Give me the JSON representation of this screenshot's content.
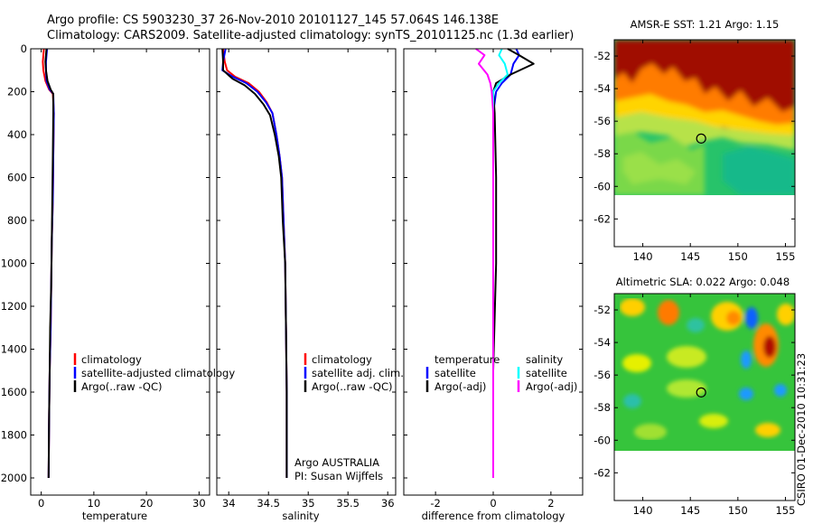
{
  "titles": {
    "line1": "Argo profile: CS 5903230_37 26-Nov-2010 20101127_145 57.064S 146.138E",
    "line2": "Climatology: CARS2009. Satellite-adjusted climatology: synTS_20101125.nc (1.3d earlier)"
  },
  "footer": "CSIRO 01-Dec-2010 10:31:23",
  "profile_panels": {
    "depth_ticks": [
      0,
      200,
      400,
      600,
      800,
      1000,
      1200,
      1400,
      1600,
      1800,
      2000
    ],
    "depth_range": [
      0,
      2080
    ]
  },
  "chart_data": [
    {
      "type": "line",
      "id": "temperature",
      "xlabel": "temperature",
      "ylabel": "",
      "xlim": [
        -2,
        32
      ],
      "ylim": [
        2080,
        0
      ],
      "xticks": [
        0,
        10,
        20,
        30
      ],
      "legend": [
        "climatology",
        "satellite-adjusted climatology",
        "Argo(..raw -QC)"
      ],
      "series": [
        {
          "name": "climatology",
          "color": "#ff0000",
          "x": [
            0.5,
            0.3,
            0.4,
            0.8,
            1.5,
            2.2,
            2.4,
            2.3,
            2.2,
            2.0,
            1.9,
            1.8,
            1.6,
            1.5,
            1.4
          ],
          "y": [
            0,
            60,
            100,
            150,
            190,
            210,
            300,
            500,
            700,
            900,
            1100,
            1300,
            1500,
            1700,
            2000
          ]
        },
        {
          "name": "satellite-adjusted climatology",
          "color": "#0000ff",
          "x": [
            1.1,
            0.9,
            0.9,
            1.0,
            1.6,
            2.3,
            2.4,
            2.3,
            2.2,
            2.0,
            1.9,
            1.8,
            1.6,
            1.5,
            1.4
          ],
          "y": [
            0,
            60,
            100,
            150,
            190,
            210,
            300,
            500,
            700,
            900,
            1100,
            1300,
            1500,
            1700,
            2000
          ]
        },
        {
          "name": "Argo(..raw -QC)",
          "color": "#000000",
          "x": [
            1.0,
            0.8,
            0.9,
            1.2,
            1.8,
            2.3,
            2.3,
            2.2,
            2.1,
            2.0,
            1.9,
            1.7,
            1.6,
            1.5,
            1.4
          ],
          "y": [
            0,
            60,
            100,
            150,
            190,
            210,
            300,
            500,
            700,
            900,
            1100,
            1300,
            1500,
            1700,
            2000
          ]
        }
      ]
    },
    {
      "type": "line",
      "id": "salinity",
      "xlabel": "salinity",
      "ylabel": "",
      "xlim": [
        33.85,
        36.1
      ],
      "ylim": [
        2080,
        0
      ],
      "xticks": [
        34,
        34.5,
        35,
        35.5,
        36
      ],
      "xtick_labels": [
        "34",
        "34.5",
        "35",
        "35.5",
        "36"
      ],
      "legend": [
        "climatology",
        "satellite adj. clim.",
        "Argo(..raw -QC)"
      ],
      "annotation": [
        "Argo AUSTRALIA",
        "PI: Susan Wijffels"
      ],
      "series": [
        {
          "name": "climatology",
          "color": "#ff0000",
          "x": [
            33.93,
            33.95,
            33.98,
            34.08,
            34.25,
            34.38,
            34.48,
            34.55,
            34.6,
            34.64,
            34.67,
            34.69,
            34.71,
            34.72,
            34.73,
            34.73
          ],
          "y": [
            0,
            60,
            100,
            130,
            160,
            200,
            250,
            300,
            400,
            500,
            600,
            800,
            1000,
            1300,
            1600,
            2000
          ]
        },
        {
          "name": "satellite adj. clim.",
          "color": "#0000ff",
          "x": [
            33.96,
            33.93,
            33.92,
            34.05,
            34.22,
            34.36,
            34.47,
            34.55,
            34.6,
            34.64,
            34.67,
            34.69,
            34.71,
            34.72,
            34.73,
            34.73
          ],
          "y": [
            0,
            60,
            100,
            130,
            160,
            200,
            250,
            300,
            400,
            500,
            600,
            800,
            1000,
            1300,
            1600,
            2000
          ]
        },
        {
          "name": "Argo(..raw -QC)",
          "color": "#000000",
          "x": [
            33.92,
            33.93,
            33.93,
            34.05,
            34.2,
            34.33,
            34.44,
            34.52,
            34.58,
            34.63,
            34.66,
            34.68,
            34.71,
            34.72,
            34.73,
            34.73
          ],
          "y": [
            0,
            60,
            100,
            140,
            170,
            210,
            260,
            310,
            400,
            500,
            600,
            800,
            1000,
            1300,
            1600,
            2000
          ]
        }
      ]
    },
    {
      "type": "line",
      "id": "difference",
      "xlabel": "difference from climatology",
      "ylabel": "",
      "xlim": [
        -3.1,
        3.1
      ],
      "ylim": [
        2080,
        0
      ],
      "xticks": [
        -2,
        0,
        2
      ],
      "legend_left": [
        "temperature",
        "satellite",
        "Argo(-adj)"
      ],
      "legend_right": [
        "salinity",
        "satellite",
        "Argo(-adj)"
      ],
      "series": [
        {
          "name": "satellite",
          "color": "#0000ff",
          "x": [
            0.8,
            0.9,
            0.7,
            0.6,
            0.3,
            0.1,
            0.0,
            0.0,
            0.0,
            0.0,
            0.0
          ],
          "y": [
            0,
            30,
            70,
            120,
            160,
            200,
            300,
            600,
            1000,
            1500,
            2000
          ]
        },
        {
          "name": "Argo(-adj)",
          "color": "#000000",
          "x": [
            0.5,
            0.9,
            1.4,
            0.6,
            0.1,
            0.0,
            0.05,
            0.1,
            0.1,
            0.0,
            0.0
          ],
          "y": [
            0,
            30,
            70,
            120,
            160,
            200,
            300,
            600,
            1000,
            1500,
            2000
          ]
        },
        {
          "name": "satellite",
          "color": "#00ffff",
          "x": [
            0.3,
            0.2,
            0.4,
            0.5,
            0.2,
            0.0,
            0.0,
            0.0,
            0.0,
            0.0,
            0.0
          ],
          "y": [
            0,
            30,
            70,
            120,
            160,
            200,
            300,
            600,
            1000,
            1500,
            2000
          ]
        },
        {
          "name": "Argo(-adj)",
          "color": "#ff00ff",
          "x": [
            -0.6,
            -0.3,
            -0.5,
            -0.2,
            -0.1,
            -0.05,
            0.0,
            0.0,
            0.0,
            0.0,
            0.0
          ],
          "y": [
            0,
            30,
            70,
            120,
            160,
            200,
            300,
            600,
            1000,
            1500,
            2000
          ]
        }
      ]
    },
    {
      "type": "heatmap",
      "id": "sst_map",
      "title": "AMSR-E SST: 1.21 Argo: 1.15",
      "xlim": [
        137,
        156
      ],
      "ylim": [
        -63.7,
        -51
      ],
      "xticks": [
        140,
        145,
        150,
        155
      ],
      "yticks": [
        -52,
        -54,
        -56,
        -58,
        -60,
        -62
      ],
      "data_extent_lat": [
        -60,
        -51
      ],
      "marker": {
        "lon": 146.138,
        "lat": -57.064
      }
    },
    {
      "type": "heatmap",
      "id": "sla_map",
      "title": "Altimetric SLA: 0.022 Argo: 0.048",
      "xlim": [
        137,
        156
      ],
      "ylim": [
        -63.7,
        -51
      ],
      "xticks": [
        140,
        145,
        150,
        155
      ],
      "yticks": [
        -52,
        -54,
        -56,
        -58,
        -60,
        -62
      ],
      "data_extent_lat": [
        -60,
        -51
      ],
      "marker": {
        "lon": 146.138,
        "lat": -57.064
      }
    }
  ]
}
